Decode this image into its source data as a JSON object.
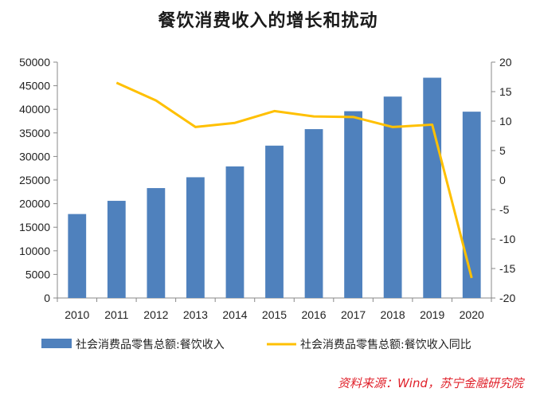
{
  "chart_data": {
    "type": "bar+line",
    "title": "餐饮消费收入的增长和扰动",
    "categories": [
      "2010",
      "2011",
      "2012",
      "2013",
      "2014",
      "2015",
      "2016",
      "2017",
      "2018",
      "2019",
      "2020"
    ],
    "series": [
      {
        "name": "社会消费品零售总额:餐饮收入",
        "type": "bar",
        "axis": "left",
        "color": "#4f81bd",
        "values": [
          17800,
          20600,
          23300,
          25600,
          27900,
          32300,
          35800,
          39600,
          42700,
          46700,
          39500
        ]
      },
      {
        "name": "社会消费品零售总额:餐饮收入同比",
        "type": "line",
        "axis": "right",
        "color": "#ffc000",
        "values": [
          null,
          16.5,
          13.5,
          9.0,
          9.7,
          11.7,
          10.8,
          10.7,
          9.0,
          9.4,
          -16.6
        ]
      }
    ],
    "y_left": {
      "min": 0,
      "max": 50000,
      "ticks": [
        "0",
        "5000",
        "10000",
        "15000",
        "20000",
        "25000",
        "30000",
        "35000",
        "40000",
        "45000",
        "50000"
      ]
    },
    "y_right": {
      "min": -20,
      "max": 20,
      "ticks": [
        "-20",
        "-15",
        "-10",
        "-5",
        "0",
        "5",
        "10",
        "15",
        "20"
      ]
    },
    "legend_position": "bottom",
    "grid": false
  },
  "source_note": "资料来源：Wind，苏宁金融研究院"
}
